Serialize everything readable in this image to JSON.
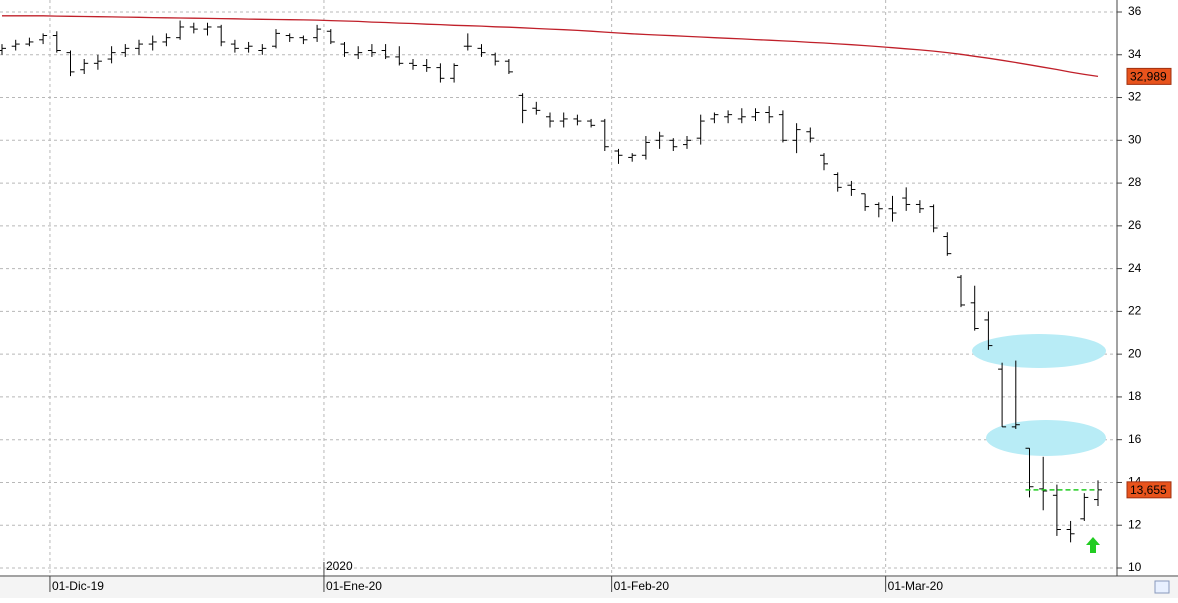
{
  "chart_data": {
    "type": "ohlc",
    "categories": [
      null,
      null,
      null,
      null,
      "01-Dic-19",
      null,
      null,
      null,
      null,
      null,
      null,
      null,
      null,
      null,
      null,
      null,
      null,
      null,
      null,
      null,
      null,
      null,
      null,
      null,
      "01-Ene-20",
      null,
      null,
      null,
      null,
      null,
      null,
      null,
      null,
      null,
      null,
      null,
      null,
      null,
      null,
      null,
      null,
      null,
      null,
      null,
      null,
      "01-Feb-20",
      null,
      null,
      null,
      null,
      null,
      null,
      null,
      null,
      null,
      null,
      null,
      null,
      null,
      null,
      null,
      null,
      null,
      null,
      null,
      "01-Mar-20",
      null,
      null,
      null,
      null,
      null,
      null,
      null,
      null,
      null,
      null,
      null,
      null,
      null,
      null,
      null
    ],
    "year_label": "2020",
    "color": "#000000",
    "open": [
      34.2,
      34.4,
      34.5,
      34.7,
      34.9,
      34.1,
      33.3,
      33.6,
      33.8,
      34.1,
      34.3,
      34.5,
      34.6,
      34.8,
      35.3,
      35.2,
      35.3,
      34.5,
      34.3,
      34.2,
      34.4,
      34.9,
      34.8,
      34.8,
      35.1,
      34.5,
      34.0,
      34.2,
      34.2,
      33.9,
      33.6,
      33.5,
      33.4,
      32.9,
      34.4,
      34.3,
      34.0,
      33.7,
      32.1,
      31.5,
      31.1,
      30.9,
      31.0,
      30.9,
      30.9,
      29.5,
      29.2,
      29.3,
      30.0,
      30.0,
      29.8,
      30.1,
      31.0,
      31.1,
      31.0,
      31.1,
      31.3,
      31.2,
      30.0,
      30.4,
      29.3,
      28.4,
      27.9,
      27.5,
      27.0,
      26.8,
      27.3,
      27.0,
      26.9,
      25.5,
      23.6,
      22.4,
      21.6,
      19.3,
      16.6,
      15.6,
      13.7,
      13.4,
      11.8,
      12.3,
      13.2
    ],
    "high": [
      34.5,
      34.7,
      34.8,
      35.0,
      35.1,
      34.2,
      33.8,
      34.0,
      34.4,
      34.5,
      34.7,
      34.9,
      35.0,
      35.6,
      35.5,
      35.5,
      35.4,
      34.7,
      34.6,
      34.5,
      35.2,
      35.0,
      34.9,
      35.4,
      35.2,
      34.6,
      34.4,
      34.5,
      34.5,
      34.4,
      33.8,
      33.8,
      33.6,
      33.6,
      35.0,
      34.5,
      34.1,
      33.8,
      32.2,
      31.8,
      31.3,
      31.3,
      31.2,
      31.0,
      31.0,
      29.6,
      29.4,
      30.2,
      30.4,
      30.1,
      30.2,
      31.2,
      31.3,
      31.4,
      31.5,
      31.5,
      31.6,
      31.4,
      30.8,
      30.6,
      29.4,
      28.5,
      28.1,
      27.5,
      27.1,
      27.4,
      27.8,
      27.2,
      27.0,
      25.7,
      23.7,
      23.2,
      22.0,
      19.6,
      19.7,
      15.6,
      15.2,
      13.9,
      12.2,
      13.5,
      14.1
    ],
    "low": [
      34.0,
      34.2,
      34.4,
      34.5,
      34.1,
      33.0,
      33.1,
      33.3,
      33.6,
      33.9,
      34.0,
      34.2,
      34.4,
      34.7,
      35.0,
      34.9,
      34.4,
      34.1,
      34.1,
      34.0,
      34.3,
      34.6,
      34.5,
      34.6,
      34.5,
      33.9,
      33.8,
      33.9,
      33.8,
      33.5,
      33.3,
      33.2,
      32.7,
      32.7,
      34.2,
      33.9,
      33.5,
      33.1,
      30.8,
      31.2,
      30.6,
      30.6,
      30.7,
      30.6,
      29.5,
      28.9,
      29.0,
      29.1,
      29.6,
      29.5,
      29.6,
      29.8,
      30.8,
      30.8,
      30.8,
      30.9,
      30.8,
      29.9,
      29.4,
      29.9,
      28.6,
      27.6,
      27.4,
      26.7,
      26.4,
      26.2,
      26.7,
      26.6,
      25.7,
      24.6,
      22.2,
      21.1,
      20.2,
      16.6,
      16.5,
      13.3,
      12.7,
      11.5,
      11.2,
      12.2,
      12.9
    ],
    "close": [
      34.3,
      34.5,
      34.6,
      34.9,
      34.2,
      33.2,
      33.6,
      33.7,
      34.1,
      34.3,
      34.5,
      34.6,
      34.8,
      35.3,
      35.2,
      35.3,
      34.6,
      34.3,
      34.4,
      34.3,
      35.0,
      34.8,
      34.7,
      35.2,
      34.6,
      34.1,
      34.1,
      34.1,
      33.9,
      33.6,
      33.5,
      33.4,
      32.9,
      33.5,
      34.4,
      34.1,
      33.7,
      33.2,
      31.4,
      31.4,
      30.9,
      31.0,
      30.9,
      30.7,
      29.7,
      29.3,
      29.3,
      29.9,
      30.2,
      29.7,
      30.0,
      30.9,
      31.2,
      31.2,
      31.1,
      31.3,
      31.1,
      30.0,
      30.5,
      30.1,
      28.9,
      27.8,
      27.7,
      26.9,
      26.8,
      26.6,
      27.0,
      26.8,
      25.9,
      24.7,
      22.3,
      21.2,
      20.4,
      16.6,
      16.7,
      13.8,
      13.6,
      11.8,
      11.6,
      13.3,
      13.655
    ],
    "moving_average": {
      "color": "#c0202a",
      "values": [
        35.82,
        35.82,
        35.82,
        35.82,
        35.81,
        35.8,
        35.79,
        35.78,
        35.77,
        35.76,
        35.75,
        35.74,
        35.73,
        35.72,
        35.71,
        35.7,
        35.69,
        35.68,
        35.67,
        35.66,
        35.65,
        35.64,
        35.63,
        35.62,
        35.6,
        35.58,
        35.56,
        35.53,
        35.51,
        35.48,
        35.46,
        35.43,
        35.41,
        35.38,
        35.36,
        35.34,
        35.31,
        35.29,
        35.26,
        35.23,
        35.2,
        35.17,
        35.14,
        35.1,
        35.06,
        35.02,
        34.98,
        34.95,
        34.92,
        34.89,
        34.86,
        34.83,
        34.8,
        34.77,
        34.74,
        34.71,
        34.68,
        34.65,
        34.62,
        34.58,
        34.55,
        34.51,
        34.47,
        34.43,
        34.38,
        34.33,
        34.28,
        34.23,
        34.17,
        34.1,
        34.02,
        33.93,
        33.84,
        33.74,
        33.64,
        33.53,
        33.42,
        33.31,
        33.19,
        33.08,
        32.989
      ]
    },
    "price_labels": [
      {
        "value": 32.989,
        "label": "32,989"
      },
      {
        "value": 13.655,
        "label": "13,655"
      }
    ],
    "price_label_color": "#e8531c",
    "level_line": {
      "value": 13.655,
      "color": "#22cc22"
    },
    "ylim": [
      10,
      36
    ],
    "yticks": [
      10,
      12,
      14,
      16,
      18,
      20,
      22,
      24,
      26,
      28,
      30,
      32,
      34,
      36
    ],
    "grid": true
  }
}
